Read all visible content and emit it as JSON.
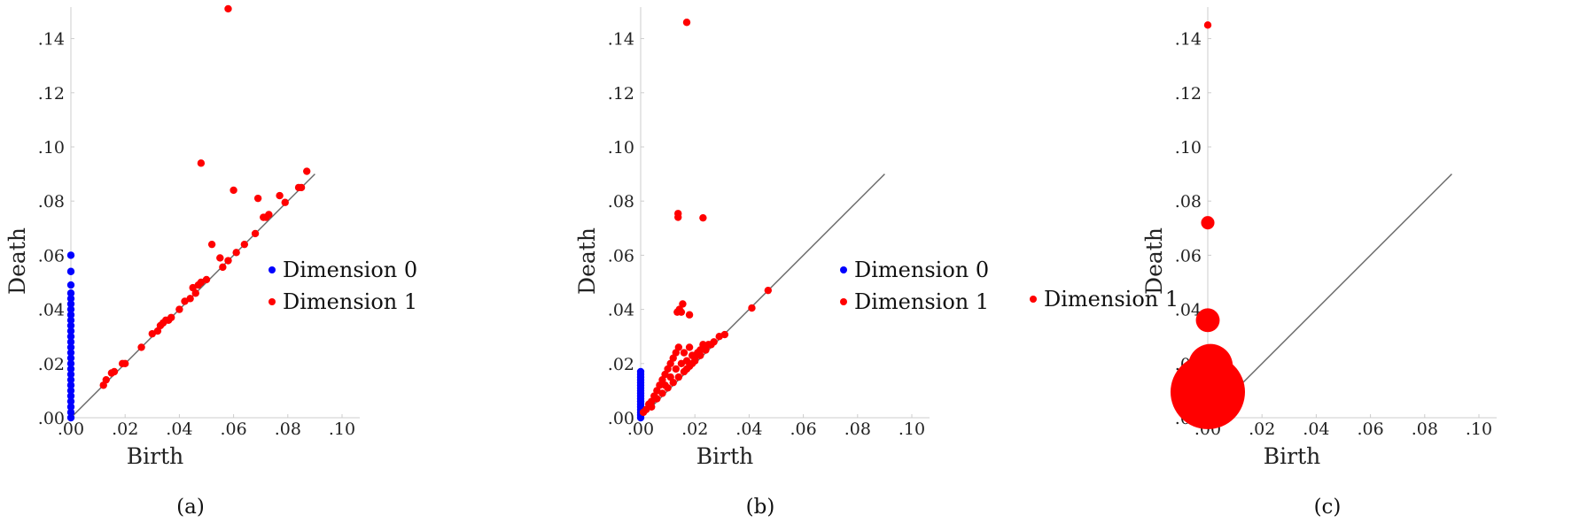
{
  "chart_data": [
    {
      "type": "scatter",
      "caption": "(a)",
      "xlabel": "Birth",
      "ylabel": "Death",
      "xlim": [
        0,
        0.1
      ],
      "ylim": [
        0,
        0.15
      ],
      "xticks": [
        ".00",
        ".02",
        ".04",
        ".06",
        ".08",
        ".10"
      ],
      "yticks": [
        ".00",
        ".02",
        ".04",
        ".06",
        ".08",
        ".10",
        ".12",
        ".14"
      ],
      "diagonal": [
        0,
        0.09
      ],
      "legend_position": "right",
      "series": [
        {
          "name": "Dimension 0",
          "color": "#0000ff",
          "points": [
            [
              0,
              0
            ],
            [
              0,
              0.002
            ],
            [
              0,
              0.004
            ],
            [
              0,
              0.006
            ],
            [
              0,
              0.008
            ],
            [
              0,
              0.01
            ],
            [
              0,
              0.012
            ],
            [
              0,
              0.014
            ],
            [
              0,
              0.016
            ],
            [
              0,
              0.018
            ],
            [
              0,
              0.02
            ],
            [
              0,
              0.022
            ],
            [
              0,
              0.024
            ],
            [
              0,
              0.026
            ],
            [
              0,
              0.028
            ],
            [
              0,
              0.03
            ],
            [
              0,
              0.032
            ],
            [
              0,
              0.034
            ],
            [
              0,
              0.036
            ],
            [
              0,
              0.038
            ],
            [
              0,
              0.04
            ],
            [
              0,
              0.042
            ],
            [
              0,
              0.044
            ],
            [
              0,
              0.046
            ],
            [
              0,
              0.049
            ],
            [
              0,
              0.054
            ],
            [
              0,
              0.06
            ]
          ]
        },
        {
          "name": "Dimension 1",
          "color": "#ff0000",
          "points": [
            [
              0.058,
              0.151
            ],
            [
              0.048,
              0.094
            ],
            [
              0.06,
              0.084
            ],
            [
              0.069,
              0.081
            ],
            [
              0.077,
              0.082
            ],
            [
              0.079,
              0.0795
            ],
            [
              0.087,
              0.091
            ],
            [
              0.084,
              0.085
            ],
            [
              0.085,
              0.085
            ],
            [
              0.071,
              0.074
            ],
            [
              0.072,
              0.074
            ],
            [
              0.073,
              0.075
            ],
            [
              0.068,
              0.068
            ],
            [
              0.064,
              0.064
            ],
            [
              0.061,
              0.061
            ],
            [
              0.058,
              0.058
            ],
            [
              0.056,
              0.0556
            ],
            [
              0.055,
              0.059
            ],
            [
              0.052,
              0.064
            ],
            [
              0.05,
              0.051
            ],
            [
              0.048,
              0.05
            ],
            [
              0.047,
              0.049
            ],
            [
              0.045,
              0.048
            ],
            [
              0.046,
              0.046
            ],
            [
              0.044,
              0.044
            ],
            [
              0.042,
              0.043
            ],
            [
              0.04,
              0.04
            ],
            [
              0.037,
              0.037
            ],
            [
              0.036,
              0.036
            ],
            [
              0.035,
              0.036
            ],
            [
              0.034,
              0.035
            ],
            [
              0.033,
              0.034
            ],
            [
              0.032,
              0.032
            ],
            [
              0.03,
              0.031
            ],
            [
              0.026,
              0.026
            ],
            [
              0.02,
              0.02
            ],
            [
              0.019,
              0.02
            ],
            [
              0.016,
              0.017
            ],
            [
              0.015,
              0.0165
            ],
            [
              0.013,
              0.014
            ],
            [
              0.012,
              0.012
            ]
          ]
        }
      ]
    },
    {
      "type": "scatter",
      "caption": "(b)",
      "xlabel": "Birth",
      "ylabel": "Death",
      "xlim": [
        0,
        0.1
      ],
      "ylim": [
        0,
        0.15
      ],
      "xticks": [
        ".00",
        ".02",
        ".04",
        ".06",
        ".08",
        ".10"
      ],
      "yticks": [
        ".00",
        ".02",
        ".04",
        ".06",
        ".08",
        ".10",
        ".12",
        ".14"
      ],
      "diagonal": [
        0,
        0.09
      ],
      "legend_position": "right",
      "series": [
        {
          "name": "Dimension 0",
          "color": "#0000ff",
          "points": [
            [
              0,
              0
            ],
            [
              0,
              0.001
            ],
            [
              0,
              0.002
            ],
            [
              0,
              0.003
            ],
            [
              0,
              0.004
            ],
            [
              0,
              0.005
            ],
            [
              0,
              0.006
            ],
            [
              0,
              0.007
            ],
            [
              0,
              0.008
            ],
            [
              0,
              0.009
            ],
            [
              0,
              0.01
            ],
            [
              0,
              0.011
            ],
            [
              0,
              0.012
            ],
            [
              0,
              0.013
            ],
            [
              0,
              0.014
            ],
            [
              0,
              0.015
            ],
            [
              0,
              0.016
            ],
            [
              0,
              0.017
            ]
          ]
        },
        {
          "name": "Dimension 1",
          "color": "#ff0000",
          "points": [
            [
              0.017,
              0.146
            ],
            [
              0.0138,
              0.0754
            ],
            [
              0.0138,
              0.074
            ],
            [
              0.023,
              0.0738
            ],
            [
              0.0143,
              0.04
            ],
            [
              0.0155,
              0.042
            ],
            [
              0.018,
              0.038
            ],
            [
              0.0135,
              0.039
            ],
            [
              0.015,
              0.039
            ],
            [
              0.041,
              0.0405
            ],
            [
              0.047,
              0.047
            ],
            [
              0.031,
              0.0307
            ],
            [
              0.001,
              0.002
            ],
            [
              0.002,
              0.003
            ],
            [
              0.003,
              0.005
            ],
            [
              0.004,
              0.006
            ],
            [
              0.005,
              0.008
            ],
            [
              0.006,
              0.01
            ],
            [
              0.007,
              0.012
            ],
            [
              0.008,
              0.014
            ],
            [
              0.009,
              0.016
            ],
            [
              0.01,
              0.018
            ],
            [
              0.011,
              0.02
            ],
            [
              0.012,
              0.022
            ],
            [
              0.013,
              0.024
            ],
            [
              0.014,
              0.026
            ],
            [
              0.016,
              0.024
            ],
            [
              0.017,
              0.021
            ],
            [
              0.018,
              0.026
            ],
            [
              0.019,
              0.023
            ],
            [
              0.02,
              0.022
            ],
            [
              0.022,
              0.025
            ],
            [
              0.023,
              0.027
            ],
            [
              0.025,
              0.027
            ],
            [
              0.027,
              0.028
            ],
            [
              0.029,
              0.03
            ],
            [
              0.004,
              0.004
            ],
            [
              0.006,
              0.007
            ],
            [
              0.008,
              0.009
            ],
            [
              0.01,
              0.011
            ],
            [
              0.012,
              0.013
            ],
            [
              0.014,
              0.015
            ],
            [
              0.016,
              0.017
            ],
            [
              0.018,
              0.019
            ],
            [
              0.02,
              0.021
            ],
            [
              0.022,
              0.023
            ],
            [
              0.024,
              0.025
            ],
            [
              0.026,
              0.027
            ],
            [
              0.009,
              0.012
            ],
            [
              0.011,
              0.015
            ],
            [
              0.013,
              0.018
            ],
            [
              0.015,
              0.02
            ],
            [
              0.017,
              0.018
            ],
            [
              0.019,
              0.02
            ],
            [
              0.021,
              0.024
            ]
          ]
        }
      ]
    },
    {
      "type": "scatter",
      "caption": "(c)",
      "xlabel": "Birth",
      "ylabel": "Death",
      "xlim": [
        0,
        0.1
      ],
      "ylim": [
        0,
        0.15
      ],
      "xticks": [
        ".00",
        ".02",
        ".04",
        ".06",
        ".08",
        ".10"
      ],
      "yticks": [
        ".00",
        ".02",
        ".04",
        ".06",
        ".08",
        ".10",
        ".12",
        ".14"
      ],
      "diagonal": [
        0,
        0.09
      ],
      "legend_position": "right",
      "marker_size_encodes": "multiplicity",
      "series": [
        {
          "name": "Dimension 1",
          "color": "#ff0000",
          "points": [
            [
              0,
              0.145,
              1
            ],
            [
              0,
              0.072,
              1.8
            ],
            [
              0,
              0.036,
              3.2
            ],
            [
              0.001,
              0.019,
              6
            ],
            [
              0,
              0.0095,
              10
            ]
          ]
        }
      ]
    }
  ]
}
